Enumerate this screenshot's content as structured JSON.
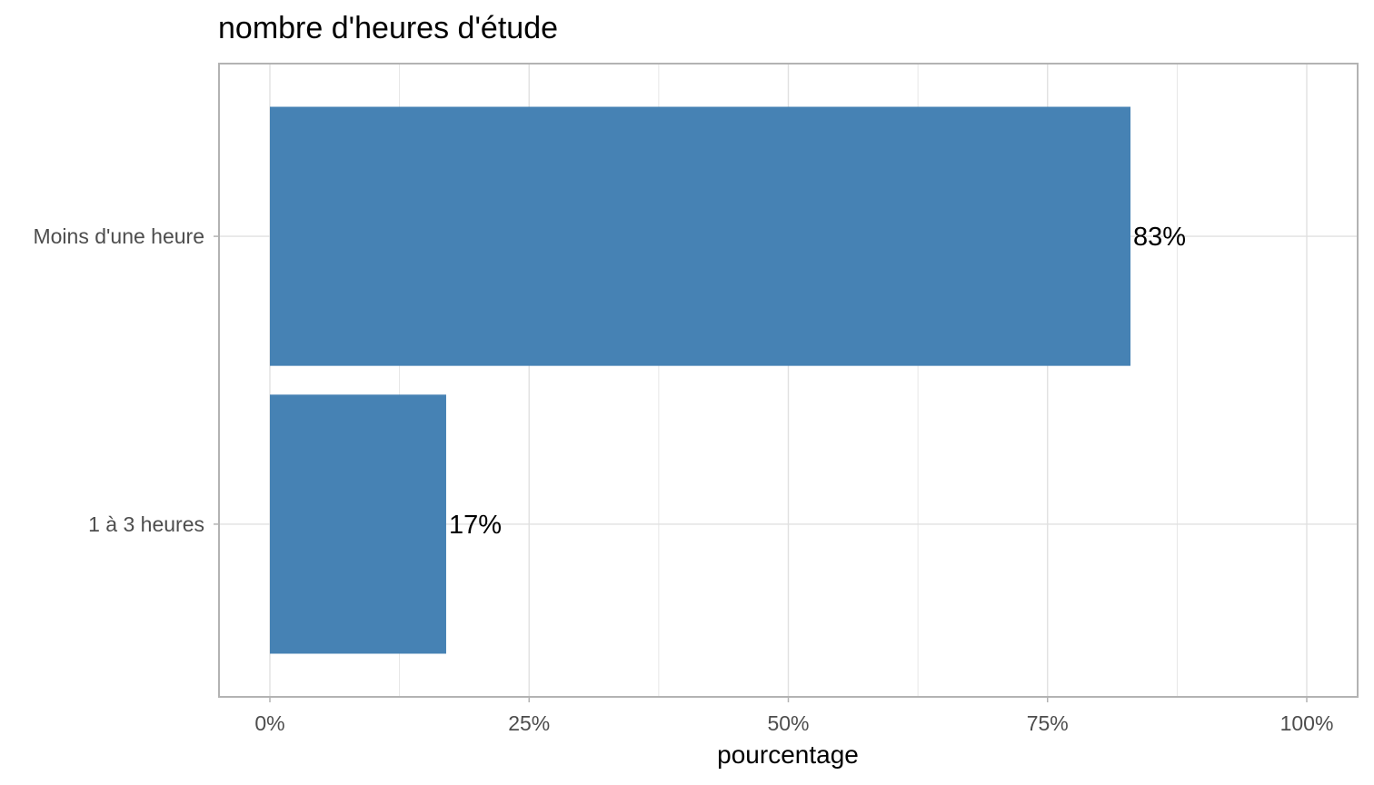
{
  "chart_data": {
    "type": "bar",
    "orientation": "horizontal",
    "title": "nombre d'heures d'étude",
    "xlabel": "pourcentage",
    "ylabel": "",
    "categories": [
      "1 à 3 heures",
      "Moins d'une heure"
    ],
    "values": [
      0.17,
      0.83
    ],
    "data_labels": [
      "17%",
      "83%"
    ],
    "xlim": [
      0,
      1
    ],
    "x_ticks": [
      0,
      0.25,
      0.5,
      0.75,
      1
    ],
    "x_tick_labels": [
      "0%",
      "25%",
      "50%",
      "75%",
      "100%"
    ],
    "grid": true,
    "legend": "none",
    "colors": {
      "bar": "#4682B4",
      "grid": "#e0e0e0",
      "panel_border": "#b3b3b3"
    }
  }
}
